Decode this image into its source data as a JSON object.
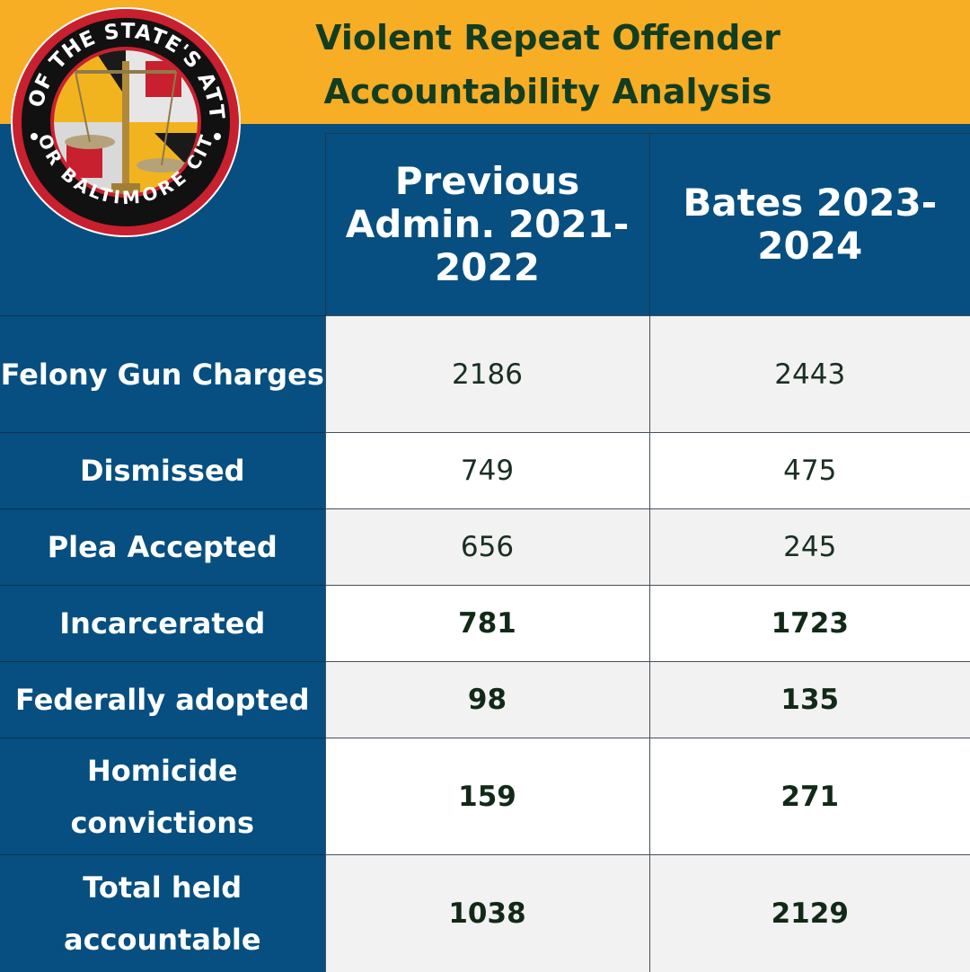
{
  "header": {
    "title": "Violent Repeat Offender Accountability Analysis",
    "seal_top_text": "OFFICE OF THE STATE'S ATTORNEY",
    "seal_bottom_text": "FOR BALTIMORE CITY"
  },
  "colors": {
    "banner": "#f7ad24",
    "navy": "#064f80",
    "title_text": "#123d20"
  },
  "chart_data": {
    "type": "table",
    "title": "Violent Repeat Offender Accountability Analysis",
    "columns": [
      "Previous Admin. 2021-2022",
      "Bates 2023-2024"
    ],
    "rows": [
      {
        "label": "Felony Gun Charges",
        "values": [
          "2186",
          "2443"
        ],
        "bold": false
      },
      {
        "label": "Dismissed",
        "values": [
          "749",
          "475"
        ],
        "bold": false
      },
      {
        "label": "Plea Accepted",
        "values": [
          "656",
          "245"
        ],
        "bold": false
      },
      {
        "label": "Incarcerated",
        "values": [
          "781",
          "1723"
        ],
        "bold": true
      },
      {
        "label": "Federally adopted",
        "values": [
          "98",
          "135"
        ],
        "bold": true
      },
      {
        "label": "Homicide convictions",
        "values": [
          "159",
          "271"
        ],
        "bold": true
      },
      {
        "label": "Total held accountable",
        "values": [
          "1038",
          "2129"
        ],
        "bold": true
      }
    ]
  }
}
